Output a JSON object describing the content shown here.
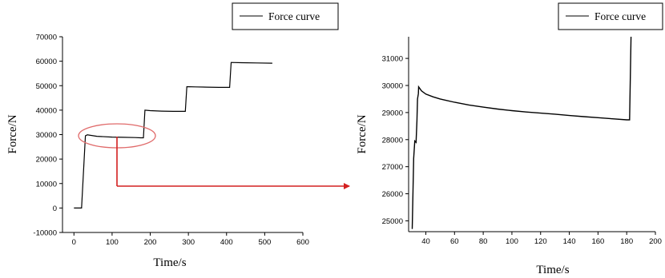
{
  "chart_data": [
    {
      "type": "line",
      "xlabel": "Time/s",
      "ylabel": "Force/N",
      "xlim": [
        -30,
        600
      ],
      "ylim": [
        -10000,
        70000
      ],
      "xticks": [
        0,
        100,
        200,
        300,
        400,
        500,
        600
      ],
      "yticks": [
        -10000,
        0,
        10000,
        20000,
        30000,
        40000,
        50000,
        60000,
        70000
      ],
      "legend": "top-right",
      "grid": false,
      "series": [
        {
          "name": "Force curve",
          "color": "#000000",
          "x": [
            0,
            20,
            30,
            35,
            60,
            100,
            130,
            160,
            175,
            182,
            186,
            200,
            230,
            260,
            285,
            292,
            296,
            320,
            350,
            380,
            402,
            408,
            412,
            440,
            480,
            520
          ],
          "y": [
            0,
            0,
            29500,
            29900,
            29300,
            29000,
            28900,
            28800,
            28700,
            28700,
            40000,
            39800,
            39600,
            39500,
            39500,
            39500,
            49600,
            49500,
            49400,
            49300,
            49300,
            49300,
            59500,
            59400,
            59300,
            59200
          ]
        }
      ],
      "annotations": {
        "highlight_ellipse": {
          "cx": 115,
          "cy": 29300
        }
      }
    },
    {
      "type": "line",
      "xlabel": "Time/s",
      "ylabel": "Force/N",
      "xlim": [
        28,
        200
      ],
      "ylim": [
        24600,
        31800
      ],
      "xticks": [
        40,
        60,
        80,
        100,
        120,
        140,
        160,
        180,
        200
      ],
      "yticks": [
        25000,
        26000,
        27000,
        28000,
        29000,
        30000,
        31000
      ],
      "legend": "top-right",
      "grid": false,
      "series": [
        {
          "name": "Force curve",
          "color": "#000000",
          "x": [
            30.5,
            31.5,
            32.3,
            33.2,
            33.8,
            34.2,
            34.8,
            35,
            37,
            40,
            45,
            50,
            60,
            70,
            80,
            90,
            100,
            110,
            120,
            130,
            140,
            150,
            160,
            170,
            180,
            182,
            183
          ],
          "y": [
            24700,
            27300,
            27950,
            27900,
            28700,
            29500,
            29700,
            29950,
            29800,
            29680,
            29580,
            29500,
            29380,
            29280,
            29200,
            29130,
            29070,
            29020,
            28980,
            28940,
            28890,
            28850,
            28810,
            28770,
            28730,
            28730,
            31800
          ]
        }
      ]
    }
  ]
}
